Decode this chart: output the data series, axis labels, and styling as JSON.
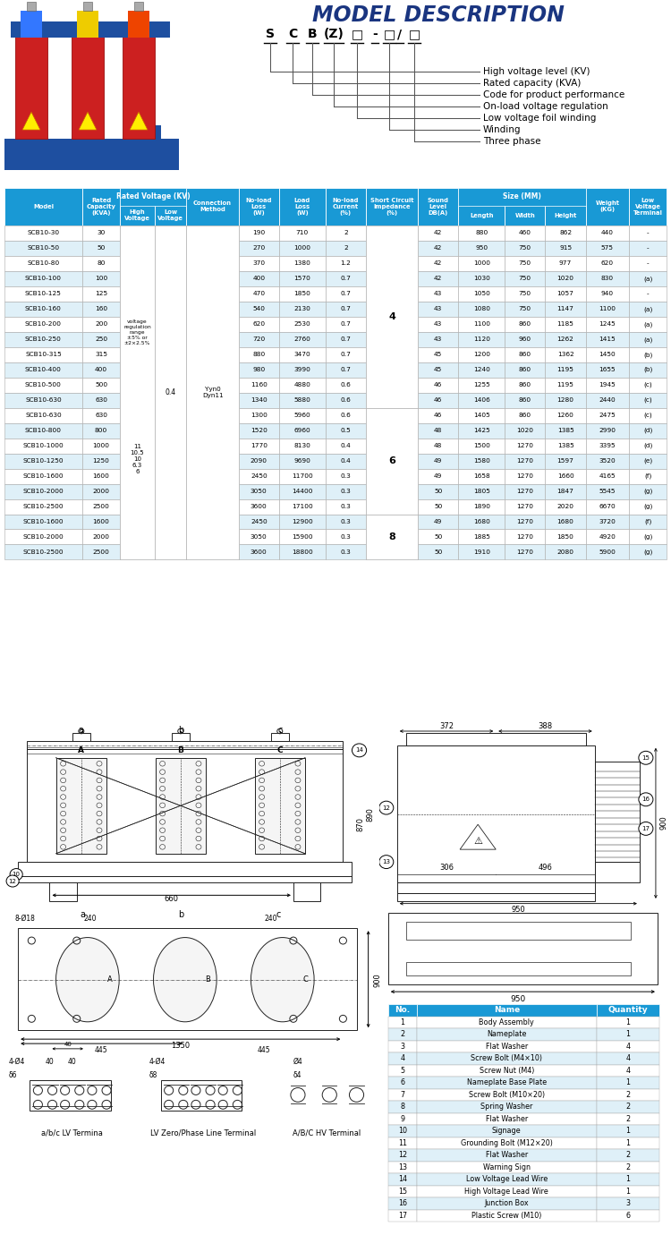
{
  "title": "MODEL DESCRIPTION",
  "model_code_parts": [
    "S",
    "C",
    "B",
    "(Z)",
    "□",
    "-",
    "□",
    "/",
    "□"
  ],
  "model_labels": [
    "High voltage level (KV)",
    "Rated capacity (KVA)",
    "Code for product performance",
    "On-load voltage regulation",
    "Low voltage foil winding",
    "Winding",
    "Three phase"
  ],
  "table_data": [
    [
      "SCB10-30",
      "30",
      "190",
      "710",
      "2",
      "42",
      "880",
      "460",
      "862",
      "440",
      "-"
    ],
    [
      "SCB10-50",
      "50",
      "270",
      "1000",
      "2",
      "42",
      "950",
      "750",
      "915",
      "575",
      "-"
    ],
    [
      "SCB10-80",
      "80",
      "370",
      "1380",
      "1.2",
      "42",
      "1000",
      "750",
      "977",
      "620",
      "-"
    ],
    [
      "SCB10-100",
      "100",
      "400",
      "1570",
      "0.7",
      "42",
      "1030",
      "750",
      "1020",
      "830",
      "(a)"
    ],
    [
      "SCB10-125",
      "125",
      "470",
      "1850",
      "0.7",
      "43",
      "1050",
      "750",
      "1057",
      "940",
      "-"
    ],
    [
      "SCB10-160",
      "160",
      "540",
      "2130",
      "0.7",
      "43",
      "1080",
      "750",
      "1147",
      "1100",
      "(a)"
    ],
    [
      "SCB10-200",
      "200",
      "620",
      "2530",
      "0.7",
      "43",
      "1100",
      "860",
      "1185",
      "1245",
      "(a)"
    ],
    [
      "SCB10-250",
      "250",
      "720",
      "2760",
      "0.7",
      "43",
      "1120",
      "960",
      "1262",
      "1415",
      "(a)"
    ],
    [
      "SCB10-315",
      "315",
      "880",
      "3470",
      "0.7",
      "45",
      "1200",
      "860",
      "1362",
      "1450",
      "(b)"
    ],
    [
      "SCB10-400",
      "400",
      "980",
      "3990",
      "0.7",
      "45",
      "1240",
      "860",
      "1195",
      "1655",
      "(b)"
    ],
    [
      "SCB10-500",
      "500",
      "1160",
      "4880",
      "0.6",
      "46",
      "1255",
      "860",
      "1195",
      "1945",
      "(c)"
    ],
    [
      "SCB10-630",
      "630",
      "1340",
      "5880",
      "0.6",
      "46",
      "1406",
      "860",
      "1280",
      "2440",
      "(c)"
    ],
    [
      "SCB10-630",
      "630",
      "1300",
      "5960",
      "0.6",
      "46",
      "1405",
      "860",
      "1260",
      "2475",
      "(c)"
    ],
    [
      "SCB10-800",
      "800",
      "1520",
      "6960",
      "0.5",
      "48",
      "1425",
      "1020",
      "1385",
      "2990",
      "(d)"
    ],
    [
      "SCB10-1000",
      "1000",
      "1770",
      "8130",
      "0.4",
      "48",
      "1500",
      "1270",
      "1385",
      "3395",
      "(d)"
    ],
    [
      "SCB10-1250",
      "1250",
      "2090",
      "9690",
      "0.4",
      "49",
      "1580",
      "1270",
      "1597",
      "3520",
      "(e)"
    ],
    [
      "SCB10-1600",
      "1600",
      "2450",
      "11700",
      "0.3",
      "49",
      "1658",
      "1270",
      "1660",
      "4165",
      "(f)"
    ],
    [
      "SCB10-2000",
      "2000",
      "3050",
      "14400",
      "0.3",
      "50",
      "1805",
      "1270",
      "1847",
      "5545",
      "(g)"
    ],
    [
      "SCB10-2500",
      "2500",
      "3600",
      "17100",
      "0.3",
      "50",
      "1890",
      "1270",
      "2020",
      "6670",
      "(g)"
    ],
    [
      "SCB10-1600",
      "1600",
      "2450",
      "12900",
      "0.3",
      "49",
      "1680",
      "1270",
      "1680",
      "3720",
      "(f)"
    ],
    [
      "SCB10-2000",
      "2000",
      "3050",
      "15900",
      "0.3",
      "50",
      "1885",
      "1270",
      "1850",
      "4920",
      "(g)"
    ],
    [
      "SCB10-2500",
      "2500",
      "3600",
      "18800",
      "0.3",
      "50",
      "1910",
      "1270",
      "2080",
      "5900",
      "(g)"
    ]
  ],
  "parts_rows": [
    [
      "1",
      "Body Assembly",
      "1"
    ],
    [
      "2",
      "Nameplate",
      "1"
    ],
    [
      "3",
      "Flat Washer",
      "4"
    ],
    [
      "4",
      "Screw Bolt (M4×10)",
      "4"
    ],
    [
      "5",
      "Screw Nut (M4)",
      "4"
    ],
    [
      "6",
      "Nameplate Base Plate",
      "1"
    ],
    [
      "7",
      "Screw Bolt (M10×20)",
      "2"
    ],
    [
      "8",
      "Spring Washer",
      "2"
    ],
    [
      "9",
      "Flat Washer",
      "2"
    ],
    [
      "10",
      "Signage",
      "1"
    ],
    [
      "11",
      "Grounding Bolt (M12×20)",
      "1"
    ],
    [
      "12",
      "Flat Washer",
      "2"
    ],
    [
      "13",
      "Warning Sign",
      "2"
    ],
    [
      "14",
      "Low Voltage Lead Wire",
      "1"
    ],
    [
      "15",
      "High Voltage Lead Wire",
      "1"
    ],
    [
      "16",
      "Junction Box",
      "3"
    ],
    [
      "17",
      "Plastic Screw (M10)",
      "6"
    ]
  ],
  "header_bg": "#1999d5",
  "row_odd": "#dff0f8",
  "row_even": "#ffffff",
  "title_color": "#1a3580",
  "dc": "#222222"
}
